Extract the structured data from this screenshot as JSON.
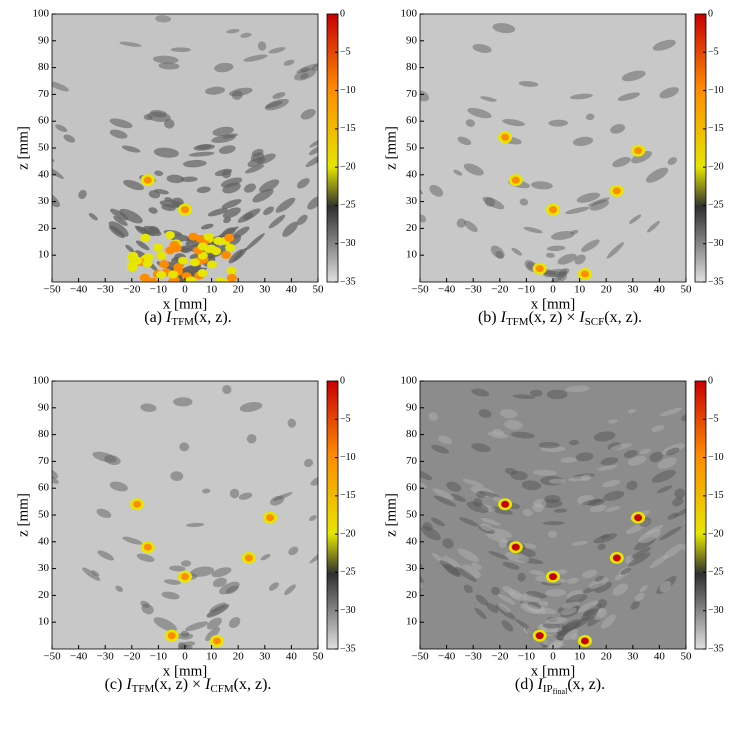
{
  "chart_data": [
    {
      "type": "image",
      "xlabel": "x [mm]",
      "ylabel": "z [mm]",
      "xlim": [
        -50,
        50
      ],
      "ylim": [
        0,
        100
      ],
      "xticks": [
        {
          "value": -50,
          "label": "−50"
        },
        {
          "value": -40,
          "label": "−40"
        },
        {
          "value": -30,
          "label": "−30"
        },
        {
          "value": -20,
          "label": "−20"
        },
        {
          "value": -10,
          "label": "−10"
        },
        0,
        10,
        20,
        30,
        40,
        50
      ],
      "yticks": [
        10,
        20,
        30,
        40,
        50,
        60,
        70,
        80,
        90,
        100
      ],
      "clim": [
        -35,
        0
      ],
      "cticks": [
        0,
        {
          "value": -5,
          "label": "−5"
        },
        {
          "value": -10,
          "label": "−10"
        },
        {
          "value": -15,
          "label": "−15"
        },
        {
          "value": -20,
          "label": "−20"
        },
        {
          "value": -25,
          "label": "−25"
        },
        {
          "value": -30,
          "label": "−30"
        },
        {
          "value": -35,
          "label": "−35"
        }
      ],
      "colormap": [
        "#e0e0e0",
        "#303030",
        "#e6e600",
        "#ff8c00",
        "#c80000"
      ],
      "caption": [
        "(a)",
        "I",
        "TFM",
        "(x, z)."
      ]
    },
    {
      "type": "image",
      "xlabel": "x [mm]",
      "ylabel": "z [mm]",
      "xlim": [
        -50,
        50
      ],
      "ylim": [
        0,
        100
      ],
      "xticks": [
        {
          "value": -50,
          "label": "−50"
        },
        {
          "value": -40,
          "label": "−40"
        },
        {
          "value": -30,
          "label": "−30"
        },
        {
          "value": -20,
          "label": "−20"
        },
        {
          "value": -10,
          "label": "−10"
        },
        0,
        10,
        20,
        30,
        40,
        50
      ],
      "yticks": [
        10,
        20,
        30,
        40,
        50,
        60,
        70,
        80,
        90,
        100
      ],
      "clim": [
        -35,
        0
      ],
      "cticks": [
        0,
        {
          "value": -5,
          "label": "−5"
        },
        {
          "value": -10,
          "label": "−10"
        },
        {
          "value": -15,
          "label": "−15"
        },
        {
          "value": -20,
          "label": "−20"
        },
        {
          "value": -25,
          "label": "−25"
        },
        {
          "value": -30,
          "label": "−30"
        },
        {
          "value": -35,
          "label": "−35"
        }
      ],
      "colormap": [
        "#e0e0e0",
        "#303030",
        "#e6e600",
        "#ff8c00",
        "#c80000"
      ],
      "caption": [
        "(b)",
        "I",
        "TFM",
        "(x, z) ×",
        "I",
        "SCF",
        "(x, z)."
      ]
    },
    {
      "type": "image",
      "xlabel": "x [mm]",
      "ylabel": "z [mm]",
      "xlim": [
        -50,
        50
      ],
      "ylim": [
        0,
        100
      ],
      "xticks": [
        {
          "value": -50,
          "label": "−50"
        },
        {
          "value": -40,
          "label": "−40"
        },
        {
          "value": -30,
          "label": "−30"
        },
        {
          "value": -20,
          "label": "−20"
        },
        {
          "value": -10,
          "label": "−10"
        },
        0,
        10,
        20,
        30,
        40,
        50
      ],
      "yticks": [
        10,
        20,
        30,
        40,
        50,
        60,
        70,
        80,
        90,
        100
      ],
      "clim": [
        -35,
        0
      ],
      "cticks": [
        0,
        {
          "value": -5,
          "label": "−5"
        },
        {
          "value": -10,
          "label": "−10"
        },
        {
          "value": -15,
          "label": "−15"
        },
        {
          "value": -20,
          "label": "−20"
        },
        {
          "value": -25,
          "label": "−25"
        },
        {
          "value": -30,
          "label": "−30"
        },
        {
          "value": -35,
          "label": "−35"
        }
      ],
      "colormap": [
        "#e0e0e0",
        "#303030",
        "#e6e600",
        "#ff8c00",
        "#c80000"
      ],
      "caption": [
        "(c)",
        "I",
        "TFM",
        "(x, z) ×",
        "I",
        "CFM",
        "(x, z)."
      ]
    },
    {
      "type": "image",
      "xlabel": "x [mm]",
      "ylabel": "z [mm]",
      "xlim": [
        -50,
        50
      ],
      "ylim": [
        0,
        100
      ],
      "xticks": [
        {
          "value": -50,
          "label": "−50"
        },
        {
          "value": -40,
          "label": "−40"
        },
        {
          "value": -30,
          "label": "−30"
        },
        {
          "value": -20,
          "label": "−20"
        },
        {
          "value": -10,
          "label": "−10"
        },
        0,
        10,
        20,
        30,
        40,
        50
      ],
      "yticks": [
        10,
        20,
        30,
        40,
        50,
        60,
        70,
        80,
        90,
        100
      ],
      "clim": [
        -35,
        0
      ],
      "cticks": [
        0,
        {
          "value": -5,
          "label": "−5"
        },
        {
          "value": -10,
          "label": "−10"
        },
        {
          "value": -15,
          "label": "−15"
        },
        {
          "value": -20,
          "label": "−20"
        },
        {
          "value": -25,
          "label": "−25"
        },
        {
          "value": -30,
          "label": "−30"
        },
        {
          "value": -35,
          "label": "−35"
        }
      ],
      "colormap": [
        "#e0e0e0",
        "#303030",
        "#e6e600",
        "#ff8c00",
        "#c80000"
      ],
      "caption": [
        "(d)",
        "I",
        "IP",
        "final",
        "(x, z)."
      ]
    }
  ]
}
